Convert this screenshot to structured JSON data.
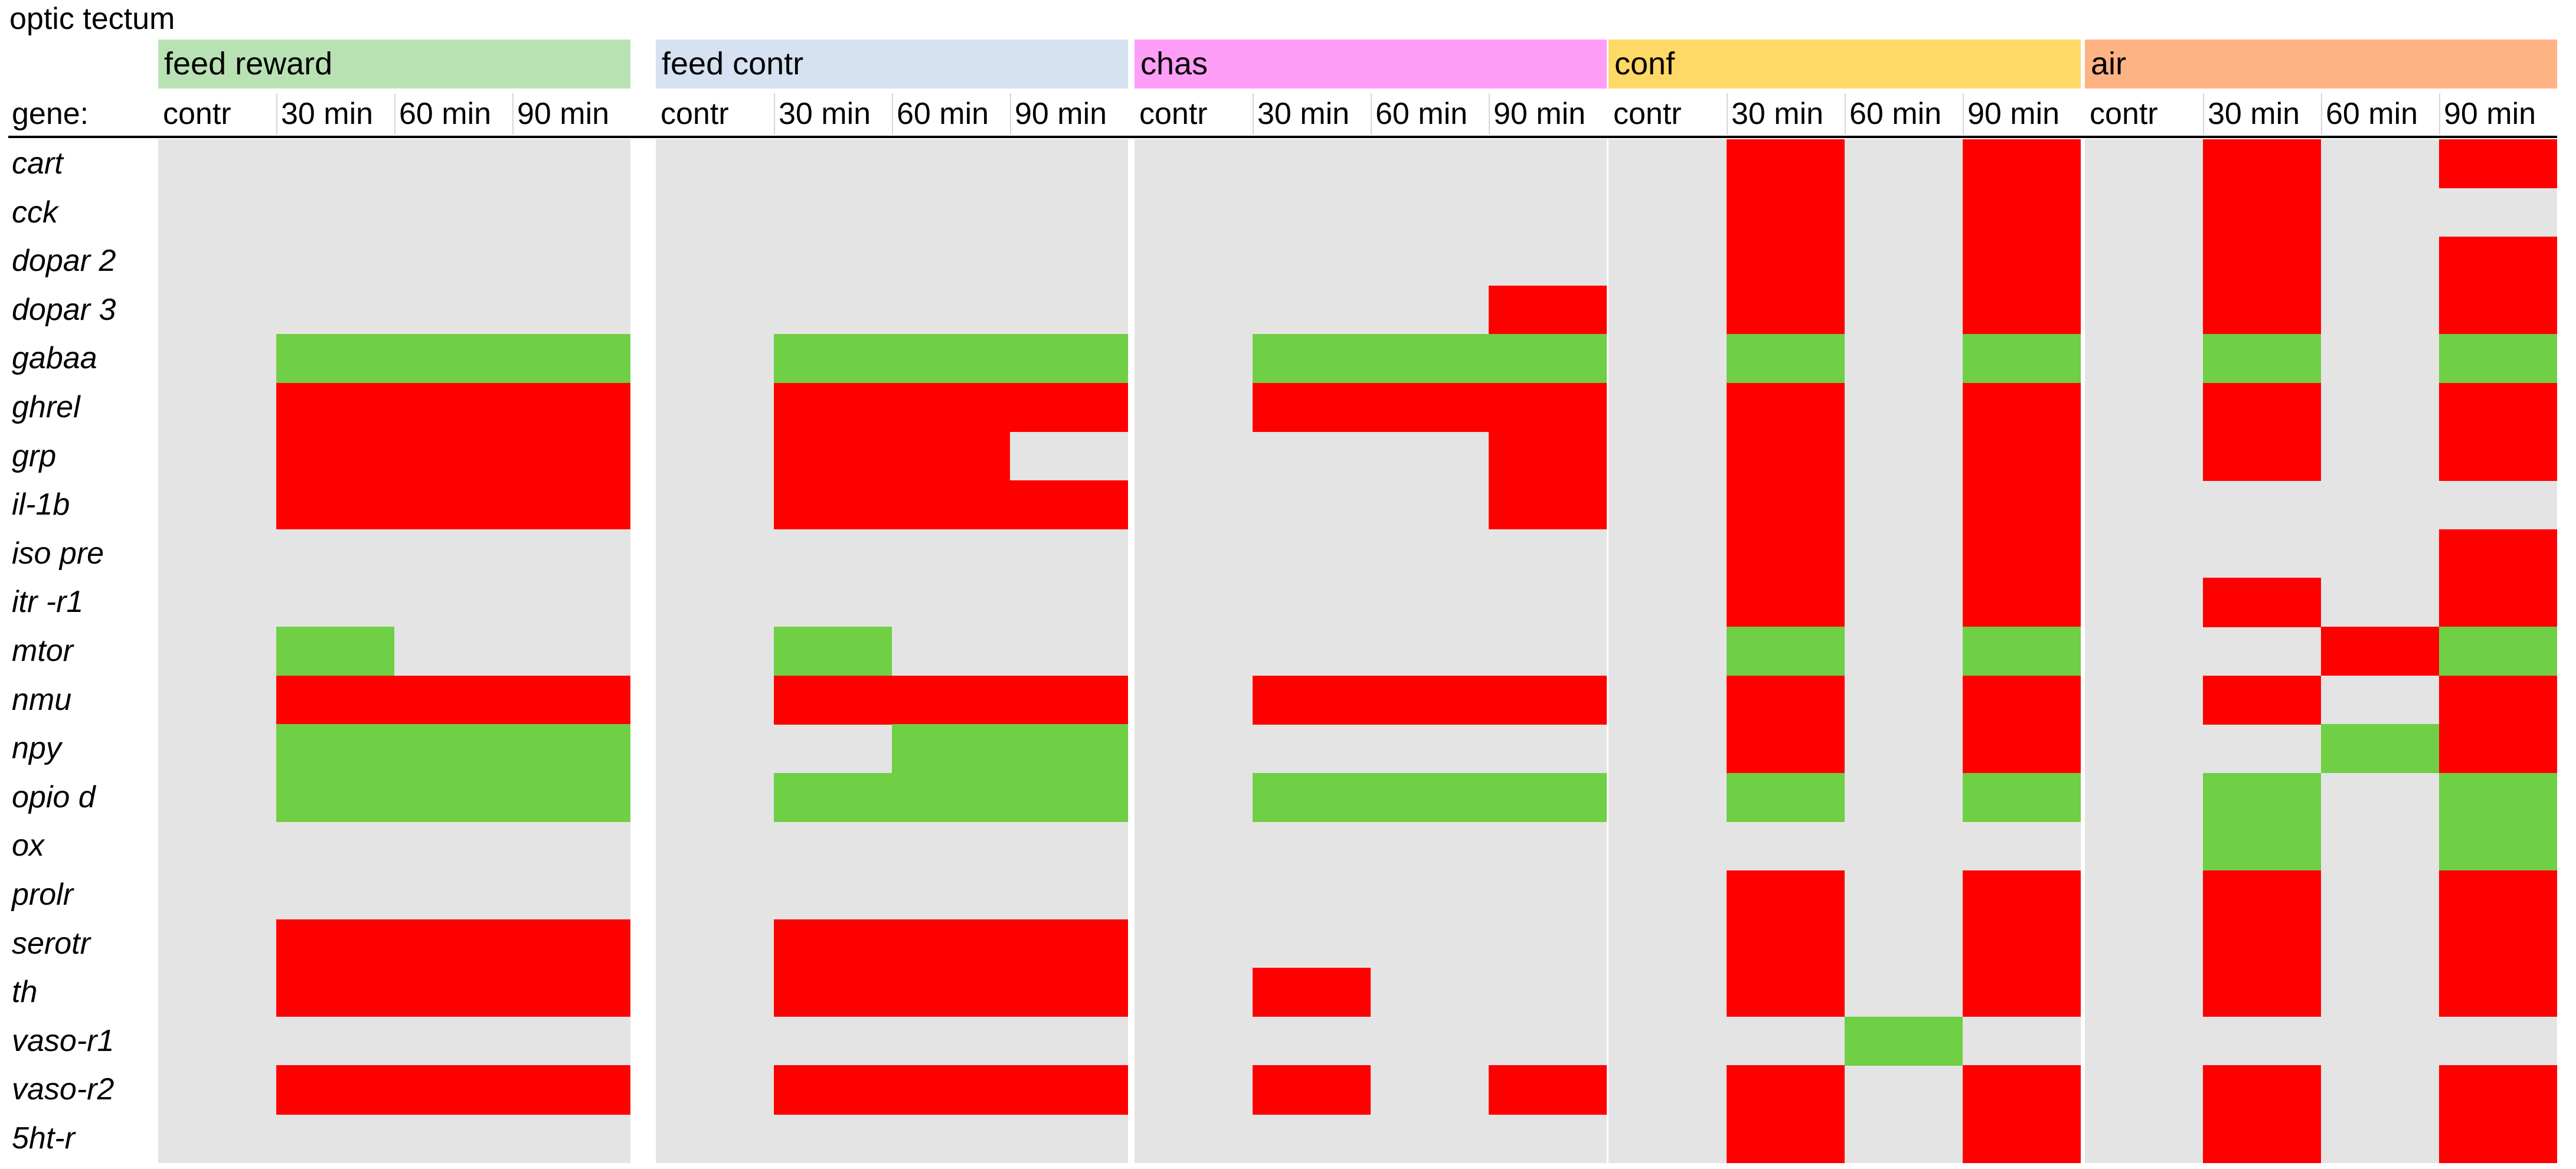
{
  "page": {
    "title": "optic tectum"
  },
  "colors": {
    "background": "#e4e4e4",
    "up": "#ff0000",
    "down": "#6fcf45",
    "divider": "#ffffff"
  },
  "chart_data": {
    "type": "heatmap",
    "title": "optic tectum",
    "row_header": "gene:",
    "genes": [
      "cart",
      "cck",
      "dopar 2",
      "dopar 3",
      "gabaa",
      "ghrel",
      "grp",
      "il-1b",
      "iso pre",
      "itr -r1",
      "mtor",
      "nmu",
      "npy",
      "opio d",
      "ox",
      "prolr",
      "serotr",
      "th",
      "vaso-r1",
      "vaso-r2",
      "5ht-r"
    ],
    "timepoints": [
      "contr",
      "30 min",
      "60 min",
      "90 min"
    ],
    "legend": {
      "r": "red",
      "g": "green",
      "": "no color"
    },
    "groups": [
      {
        "name": "feed reward",
        "color": "#b9e2b4",
        "cells": [
          [
            "",
            "",
            "",
            ""
          ],
          [
            "",
            "",
            "",
            ""
          ],
          [
            "",
            "",
            "",
            ""
          ],
          [
            "",
            "",
            "",
            ""
          ],
          [
            "",
            "g",
            "g",
            "g"
          ],
          [
            "",
            "r",
            "r",
            "r"
          ],
          [
            "",
            "r",
            "r",
            "r"
          ],
          [
            "",
            "r",
            "r",
            "r"
          ],
          [
            "",
            "",
            "",
            ""
          ],
          [
            "",
            "",
            "",
            ""
          ],
          [
            "",
            "g",
            "",
            ""
          ],
          [
            "",
            "r",
            "r",
            "r"
          ],
          [
            "",
            "g",
            "g",
            "g"
          ],
          [
            "",
            "g",
            "g",
            "g"
          ],
          [
            "",
            "",
            "",
            ""
          ],
          [
            "",
            "",
            "",
            ""
          ],
          [
            "",
            "r",
            "r",
            "r"
          ],
          [
            "",
            "r",
            "r",
            "r"
          ],
          [
            "",
            "",
            "",
            ""
          ],
          [
            "",
            "r",
            "r",
            "r"
          ],
          [
            "",
            "",
            "",
            ""
          ]
        ]
      },
      {
        "name": "feed contr",
        "color": "#d6e2f2",
        "cells": [
          [
            "",
            "",
            "",
            ""
          ],
          [
            "",
            "",
            "",
            ""
          ],
          [
            "",
            "",
            "",
            ""
          ],
          [
            "",
            "",
            "",
            ""
          ],
          [
            "",
            "g",
            "g",
            "g"
          ],
          [
            "",
            "r",
            "r",
            "r"
          ],
          [
            "",
            "r",
            "r",
            ""
          ],
          [
            "",
            "r",
            "r",
            "r"
          ],
          [
            "",
            "",
            "",
            ""
          ],
          [
            "",
            "",
            "",
            ""
          ],
          [
            "",
            "g",
            "",
            ""
          ],
          [
            "",
            "r",
            "r",
            "r"
          ],
          [
            "",
            "",
            "g",
            "g"
          ],
          [
            "",
            "g",
            "g",
            "g"
          ],
          [
            "",
            "",
            "",
            ""
          ],
          [
            "",
            "",
            "",
            ""
          ],
          [
            "",
            "r",
            "r",
            "r"
          ],
          [
            "",
            "r",
            "r",
            "r"
          ],
          [
            "",
            "",
            "",
            ""
          ],
          [
            "",
            "r",
            "r",
            "r"
          ],
          [
            "",
            "",
            "",
            ""
          ]
        ]
      },
      {
        "name": "chas",
        "color": "#ff9ef7",
        "cells": [
          [
            "",
            "",
            "",
            ""
          ],
          [
            "",
            "",
            "",
            ""
          ],
          [
            "",
            "",
            "",
            ""
          ],
          [
            "",
            "",
            "",
            "r"
          ],
          [
            "",
            "g",
            "g",
            "g"
          ],
          [
            "",
            "r",
            "r",
            "r"
          ],
          [
            "",
            "",
            "",
            "r"
          ],
          [
            "",
            "",
            "",
            "r"
          ],
          [
            "",
            "",
            "",
            ""
          ],
          [
            "",
            "",
            "",
            ""
          ],
          [
            "",
            "",
            "",
            ""
          ],
          [
            "",
            "r",
            "r",
            "r"
          ],
          [
            "",
            "",
            "",
            ""
          ],
          [
            "",
            "g",
            "g",
            "g"
          ],
          [
            "",
            "",
            "",
            ""
          ],
          [
            "",
            "",
            "",
            ""
          ],
          [
            "",
            "",
            "",
            ""
          ],
          [
            "",
            "r",
            "",
            ""
          ],
          [
            "",
            "",
            "",
            ""
          ],
          [
            "",
            "r",
            "",
            "r"
          ],
          [
            "",
            "",
            "",
            ""
          ]
        ]
      },
      {
        "name": "conf",
        "color": "#ffd966",
        "cells": [
          [
            "",
            "r",
            "",
            "r"
          ],
          [
            "",
            "r",
            "",
            "r"
          ],
          [
            "",
            "r",
            "",
            "r"
          ],
          [
            "",
            "r",
            "",
            "r"
          ],
          [
            "",
            "g",
            "",
            "g"
          ],
          [
            "",
            "r",
            "",
            "r"
          ],
          [
            "",
            "r",
            "",
            "r"
          ],
          [
            "",
            "r",
            "",
            "r"
          ],
          [
            "",
            "r",
            "",
            "r"
          ],
          [
            "",
            "r",
            "",
            "r"
          ],
          [
            "",
            "g",
            "",
            "g"
          ],
          [
            "",
            "r",
            "",
            "r"
          ],
          [
            "",
            "r",
            "",
            "r"
          ],
          [
            "",
            "g",
            "",
            "g"
          ],
          [
            "",
            "",
            "",
            ""
          ],
          [
            "",
            "r",
            "",
            "r"
          ],
          [
            "",
            "r",
            "",
            "r"
          ],
          [
            "",
            "r",
            "",
            "r"
          ],
          [
            "",
            "",
            "g",
            ""
          ],
          [
            "",
            "r",
            "",
            "r"
          ],
          [
            "",
            "r",
            "",
            "r"
          ]
        ]
      },
      {
        "name": "air",
        "color": "#ffb385",
        "cells": [
          [
            "",
            "r",
            "",
            "r"
          ],
          [
            "",
            "r",
            "",
            ""
          ],
          [
            "",
            "r",
            "",
            "r"
          ],
          [
            "",
            "r",
            "",
            "r"
          ],
          [
            "",
            "g",
            "",
            "g"
          ],
          [
            "",
            "r",
            "",
            "r"
          ],
          [
            "",
            "r",
            "",
            "r"
          ],
          [
            "",
            "",
            "",
            ""
          ],
          [
            "",
            "",
            "",
            "r"
          ],
          [
            "",
            "r",
            "",
            "r"
          ],
          [
            "",
            "",
            "r",
            "g"
          ],
          [
            "",
            "r",
            "",
            "r"
          ],
          [
            "",
            "",
            "g",
            "r"
          ],
          [
            "",
            "g",
            "",
            "g"
          ],
          [
            "",
            "g",
            "",
            "g"
          ],
          [
            "",
            "r",
            "",
            "r"
          ],
          [
            "",
            "r",
            "",
            "r"
          ],
          [
            "",
            "r",
            "",
            "r"
          ],
          [
            "",
            "",
            "",
            ""
          ],
          [
            "",
            "r",
            "",
            "r"
          ],
          [
            "",
            "r",
            "",
            "r"
          ]
        ]
      }
    ]
  }
}
